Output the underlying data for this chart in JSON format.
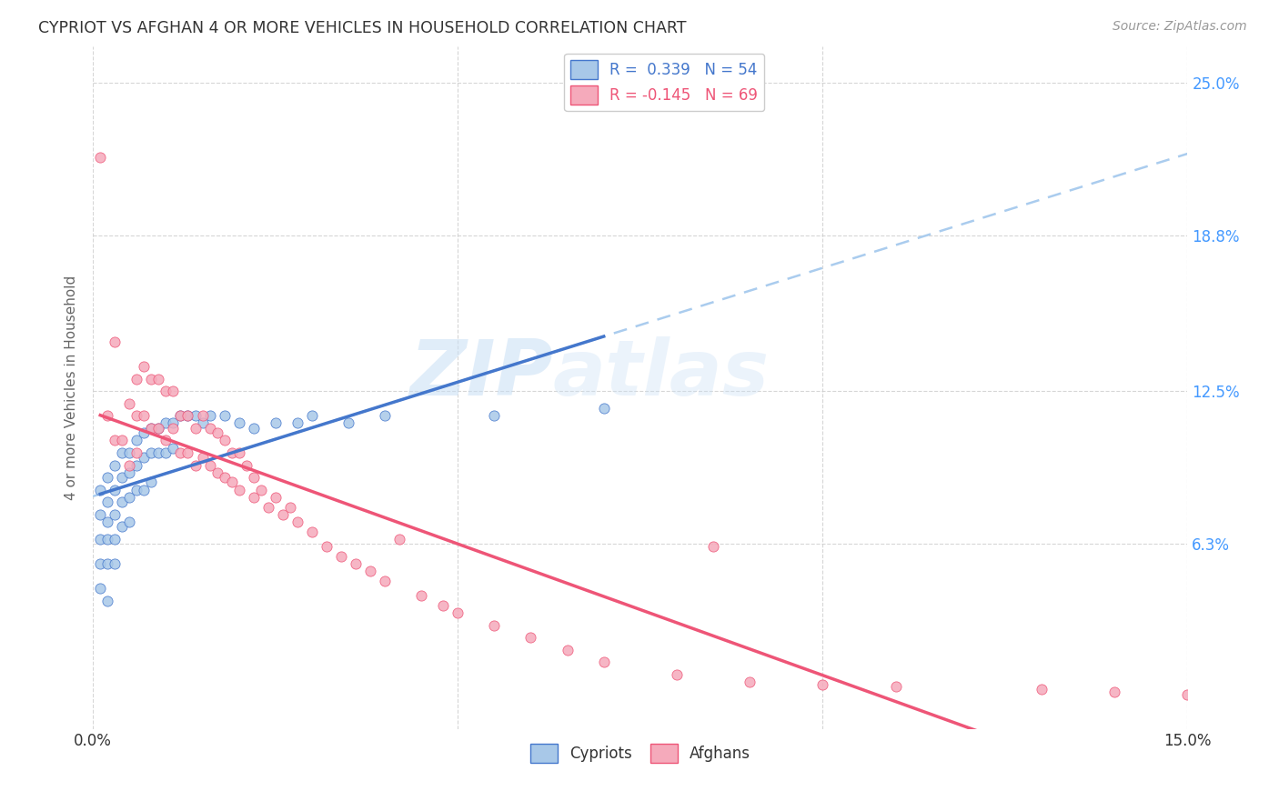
{
  "title": "CYPRIOT VS AFGHAN 4 OR MORE VEHICLES IN HOUSEHOLD CORRELATION CHART",
  "source": "Source: ZipAtlas.com",
  "ylabel": "4 or more Vehicles in Household",
  "xmin": 0.0,
  "xmax": 0.15,
  "ymin": -0.012,
  "ymax": 0.265,
  "watermark_zip": "ZIP",
  "watermark_atlas": "atlas",
  "legend_label1": "R =  0.339   N = 54",
  "legend_label2": "R = -0.145   N = 69",
  "color_cypriot": "#a8c8e8",
  "color_afghan": "#f5aabb",
  "trendline_cypriot_color": "#4477cc",
  "trendline_afghan_color": "#ee5577",
  "trendline_ext_color": "#aaccee",
  "background_color": "#ffffff",
  "grid_color": "#cccccc",
  "y_tick_vals": [
    0.063,
    0.125,
    0.188,
    0.25
  ],
  "y_tick_labels": [
    "6.3%",
    "12.5%",
    "18.8%",
    "25.0%"
  ],
  "cypriot_x": [
    0.001,
    0.001,
    0.001,
    0.001,
    0.001,
    0.002,
    0.002,
    0.002,
    0.002,
    0.002,
    0.002,
    0.003,
    0.003,
    0.003,
    0.003,
    0.003,
    0.004,
    0.004,
    0.004,
    0.004,
    0.005,
    0.005,
    0.005,
    0.005,
    0.006,
    0.006,
    0.006,
    0.007,
    0.007,
    0.007,
    0.008,
    0.008,
    0.008,
    0.009,
    0.009,
    0.01,
    0.01,
    0.011,
    0.011,
    0.012,
    0.013,
    0.014,
    0.015,
    0.016,
    0.018,
    0.02,
    0.022,
    0.025,
    0.028,
    0.03,
    0.035,
    0.04,
    0.055,
    0.07
  ],
  "cypriot_y": [
    0.085,
    0.075,
    0.065,
    0.055,
    0.045,
    0.09,
    0.08,
    0.072,
    0.065,
    0.055,
    0.04,
    0.095,
    0.085,
    0.075,
    0.065,
    0.055,
    0.1,
    0.09,
    0.08,
    0.07,
    0.1,
    0.092,
    0.082,
    0.072,
    0.105,
    0.095,
    0.085,
    0.108,
    0.098,
    0.085,
    0.11,
    0.1,
    0.088,
    0.11,
    0.1,
    0.112,
    0.1,
    0.112,
    0.102,
    0.115,
    0.115,
    0.115,
    0.112,
    0.115,
    0.115,
    0.112,
    0.11,
    0.112,
    0.112,
    0.115,
    0.112,
    0.115,
    0.115,
    0.118
  ],
  "afghan_x": [
    0.001,
    0.002,
    0.003,
    0.003,
    0.004,
    0.005,
    0.005,
    0.006,
    0.006,
    0.006,
    0.007,
    0.007,
    0.008,
    0.008,
    0.009,
    0.009,
    0.01,
    0.01,
    0.011,
    0.011,
    0.012,
    0.012,
    0.013,
    0.013,
    0.014,
    0.014,
    0.015,
    0.015,
    0.016,
    0.016,
    0.017,
    0.017,
    0.018,
    0.018,
    0.019,
    0.019,
    0.02,
    0.02,
    0.021,
    0.022,
    0.022,
    0.023,
    0.024,
    0.025,
    0.026,
    0.027,
    0.028,
    0.03,
    0.032,
    0.034,
    0.036,
    0.038,
    0.04,
    0.042,
    0.045,
    0.048,
    0.05,
    0.055,
    0.06,
    0.065,
    0.07,
    0.08,
    0.09,
    0.1,
    0.11,
    0.13,
    0.14,
    0.15,
    0.085
  ],
  "afghan_y": [
    0.22,
    0.115,
    0.145,
    0.105,
    0.105,
    0.12,
    0.095,
    0.13,
    0.115,
    0.1,
    0.135,
    0.115,
    0.13,
    0.11,
    0.13,
    0.11,
    0.125,
    0.105,
    0.125,
    0.11,
    0.115,
    0.1,
    0.115,
    0.1,
    0.11,
    0.095,
    0.115,
    0.098,
    0.11,
    0.095,
    0.108,
    0.092,
    0.105,
    0.09,
    0.1,
    0.088,
    0.1,
    0.085,
    0.095,
    0.09,
    0.082,
    0.085,
    0.078,
    0.082,
    0.075,
    0.078,
    0.072,
    0.068,
    0.062,
    0.058,
    0.055,
    0.052,
    0.048,
    0.065,
    0.042,
    0.038,
    0.035,
    0.03,
    0.025,
    0.02,
    0.015,
    0.01,
    0.007,
    0.006,
    0.005,
    0.004,
    0.003,
    0.002,
    0.062
  ]
}
